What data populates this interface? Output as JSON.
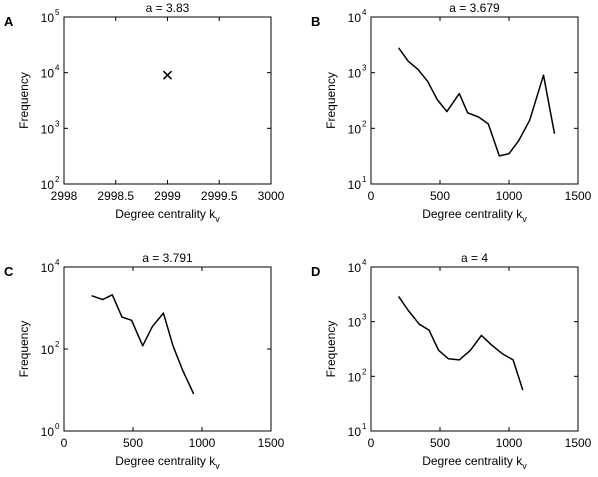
{
  "chart_data": [
    {
      "panel": "A",
      "type": "scatter",
      "title": "a = 3.83",
      "xlabel": "Degree centrality k",
      "xlabel_sub": "v",
      "ylabel": "Frequency",
      "xlim": [
        2998,
        3000
      ],
      "ylim": [
        100,
        100000
      ],
      "yscale": "log",
      "xticks": [
        2998,
        2998.5,
        2999,
        2999.5,
        3000
      ],
      "xtick_labels": [
        "2998",
        "2998.5",
        "2999",
        "2999.5",
        "3000"
      ],
      "yticks": [
        100,
        1000,
        10000,
        100000
      ],
      "ytick_exps": [
        "2",
        "3",
        "4",
        "5"
      ],
      "marker": "x",
      "x": [
        2999
      ],
      "y": [
        9000
      ]
    },
    {
      "panel": "B",
      "type": "line",
      "title": "a = 3.679",
      "xlabel": "Degree centrality k",
      "xlabel_sub": "v",
      "ylabel": "Frequency",
      "xlim": [
        0,
        1500
      ],
      "ylim": [
        10,
        10000
      ],
      "yscale": "log",
      "xticks": [
        0,
        500,
        1000,
        1500
      ],
      "xtick_labels": [
        "0",
        "500",
        "1000",
        "1500"
      ],
      "yticks": [
        10,
        100,
        1000,
        10000
      ],
      "ytick_exps": [
        "1",
        "2",
        "3",
        "4"
      ],
      "x": [
        200,
        270,
        340,
        410,
        480,
        550,
        640,
        700,
        780,
        850,
        930,
        1000,
        1070,
        1150,
        1250,
        1330
      ],
      "y": [
        2800,
        1600,
        1150,
        700,
        330,
        200,
        420,
        190,
        160,
        120,
        32,
        35,
        60,
        140,
        900,
        80
      ]
    },
    {
      "panel": "C",
      "type": "line",
      "title": "a = 3.791",
      "xlabel": "Degree centrality k",
      "xlabel_sub": "v",
      "ylabel": "Frequency",
      "xlim": [
        0,
        1500
      ],
      "ylim": [
        1,
        10000
      ],
      "yscale": "log",
      "xticks": [
        0,
        500,
        1000,
        1500
      ],
      "xtick_labels": [
        "0",
        "500",
        "1000",
        "1500"
      ],
      "yticks": [
        1,
        100,
        10000
      ],
      "ytick_exps": [
        "0",
        "2",
        "4"
      ],
      "x": [
        200,
        280,
        350,
        420,
        490,
        570,
        640,
        720,
        790,
        860,
        940
      ],
      "y": [
        2000,
        1600,
        2100,
        600,
        500,
        120,
        350,
        750,
        120,
        30,
        8
      ]
    },
    {
      "panel": "D",
      "type": "line",
      "title": "a = 4",
      "xlabel": "Degree centrality k",
      "xlabel_sub": "v",
      "ylabel": "Frequency",
      "xlim": [
        0,
        1500
      ],
      "ylim": [
        10,
        10000
      ],
      "yscale": "log",
      "xticks": [
        0,
        500,
        1000,
        1500
      ],
      "xtick_labels": [
        "0",
        "500",
        "1000",
        "1500"
      ],
      "yticks": [
        10,
        100,
        1000,
        10000
      ],
      "ytick_exps": [
        "1",
        "2",
        "3",
        "4"
      ],
      "x": [
        200,
        270,
        350,
        420,
        490,
        560,
        640,
        720,
        800,
        870,
        950,
        1030,
        1100
      ],
      "y": [
        2900,
        1600,
        900,
        700,
        300,
        210,
        200,
        300,
        560,
        380,
        260,
        200,
        56
      ]
    }
  ]
}
